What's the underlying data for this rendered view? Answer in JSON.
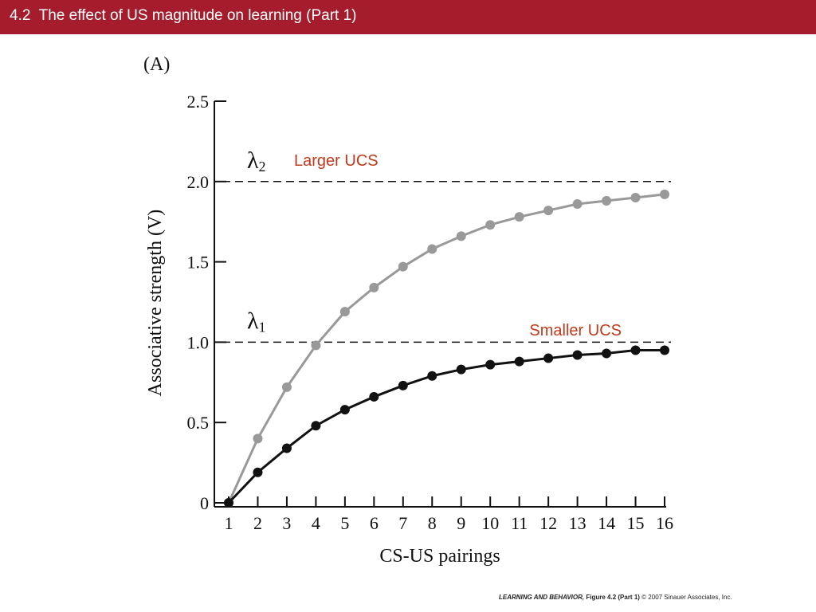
{
  "header": {
    "title": "4.2  The effect of US magnitude on learning (Part 1)"
  },
  "colors": {
    "header_bg": "#a51d2d",
    "header_text": "#ffffff",
    "larger_series": "#999999",
    "smaller_series": "#111111",
    "annotation_text": "#c0391b"
  },
  "footer": {
    "book_title": "LEARNING AND BEHAVIOR,",
    "figure": "Figure 4.2 (Part 1)",
    "copyright": "© 2007 Sinauer Associates, Inc."
  },
  "chart_data": {
    "type": "line",
    "panel_label": "(A)",
    "xlabel": "CS-US pairings",
    "ylabel": "Associative strength (V)",
    "ylim": [
      0,
      2.5
    ],
    "xlim": [
      1,
      16
    ],
    "x": [
      1,
      2,
      3,
      4,
      5,
      6,
      7,
      8,
      9,
      10,
      11,
      12,
      13,
      14,
      15,
      16
    ],
    "x_ticks": [
      "1",
      "2",
      "3",
      "4",
      "5",
      "6",
      "7",
      "8",
      "9",
      "10",
      "11",
      "12",
      "13",
      "14",
      "15",
      "16"
    ],
    "y_ticks": [
      "0",
      "0.5",
      "1.0",
      "1.5",
      "2.0",
      "2.5"
    ],
    "series": [
      {
        "name": "Larger UCS",
        "color": "#999999",
        "values": [
          0.0,
          0.4,
          0.72,
          0.98,
          1.19,
          1.34,
          1.47,
          1.58,
          1.66,
          1.73,
          1.78,
          1.82,
          1.86,
          1.88,
          1.9,
          1.92
        ]
      },
      {
        "name": "Smaller UCS",
        "color": "#111111",
        "values": [
          0.0,
          0.19,
          0.34,
          0.48,
          0.58,
          0.66,
          0.73,
          0.79,
          0.83,
          0.86,
          0.88,
          0.9,
          0.92,
          0.93,
          0.95,
          0.95
        ]
      }
    ],
    "asymptotes": [
      {
        "label": "λ",
        "subscript": "2",
        "value": 2.0
      },
      {
        "label": "λ",
        "subscript": "1",
        "value": 1.0
      }
    ],
    "grid": false,
    "legend": "none"
  }
}
